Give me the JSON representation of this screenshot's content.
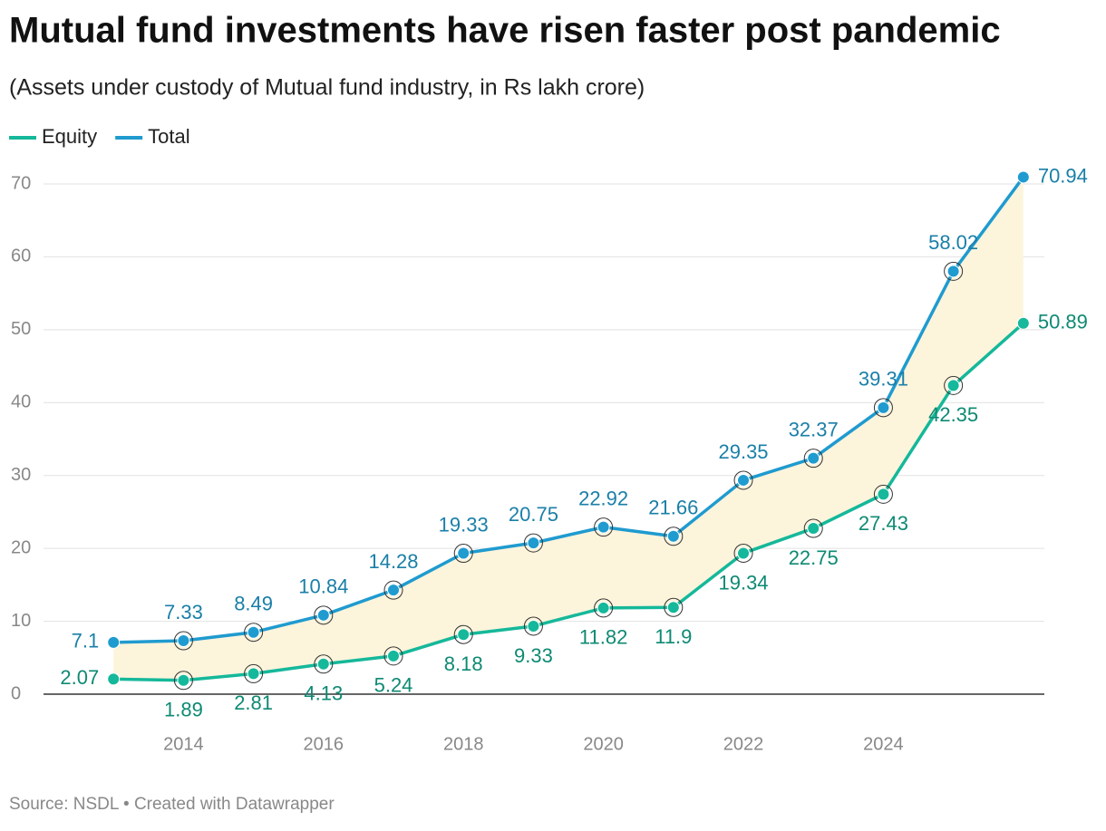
{
  "chart_data": {
    "type": "line",
    "title": "Mutual fund investments have risen faster post pandemic",
    "subtitle": "(Assets under custody of Mutual fund industry, in Rs lakh crore)",
    "source": "Source: NSDL • Created with Datawrapper",
    "x": [
      2013,
      2014,
      2015,
      2016,
      2017,
      2018,
      2019,
      2020,
      2021,
      2022,
      2023,
      2024,
      2025,
      2026
    ],
    "series": [
      {
        "name": "Equity",
        "color": "#15b89a",
        "label_color": "#0e8a73",
        "values": [
          2.07,
          1.89,
          2.81,
          4.13,
          5.24,
          8.18,
          9.33,
          11.82,
          11.9,
          19.34,
          22.75,
          27.43,
          42.35,
          50.89
        ]
      },
      {
        "name": "Total",
        "color": "#1f9bcf",
        "label_color": "#1a7fa8",
        "values": [
          7.1,
          7.33,
          8.49,
          10.84,
          14.28,
          19.33,
          20.75,
          22.92,
          21.66,
          29.35,
          32.37,
          39.31,
          58.02,
          70.94
        ]
      }
    ],
    "fill_between_color": "#fdf4dc",
    "xlim": [
      2012,
      2026.3
    ],
    "xticks": [
      2014,
      2016,
      2018,
      2020,
      2022,
      2024
    ],
    "ylim": [
      0,
      70
    ],
    "yticks": [
      0,
      10,
      20,
      30,
      40,
      50,
      60,
      70
    ],
    "grid": true
  }
}
